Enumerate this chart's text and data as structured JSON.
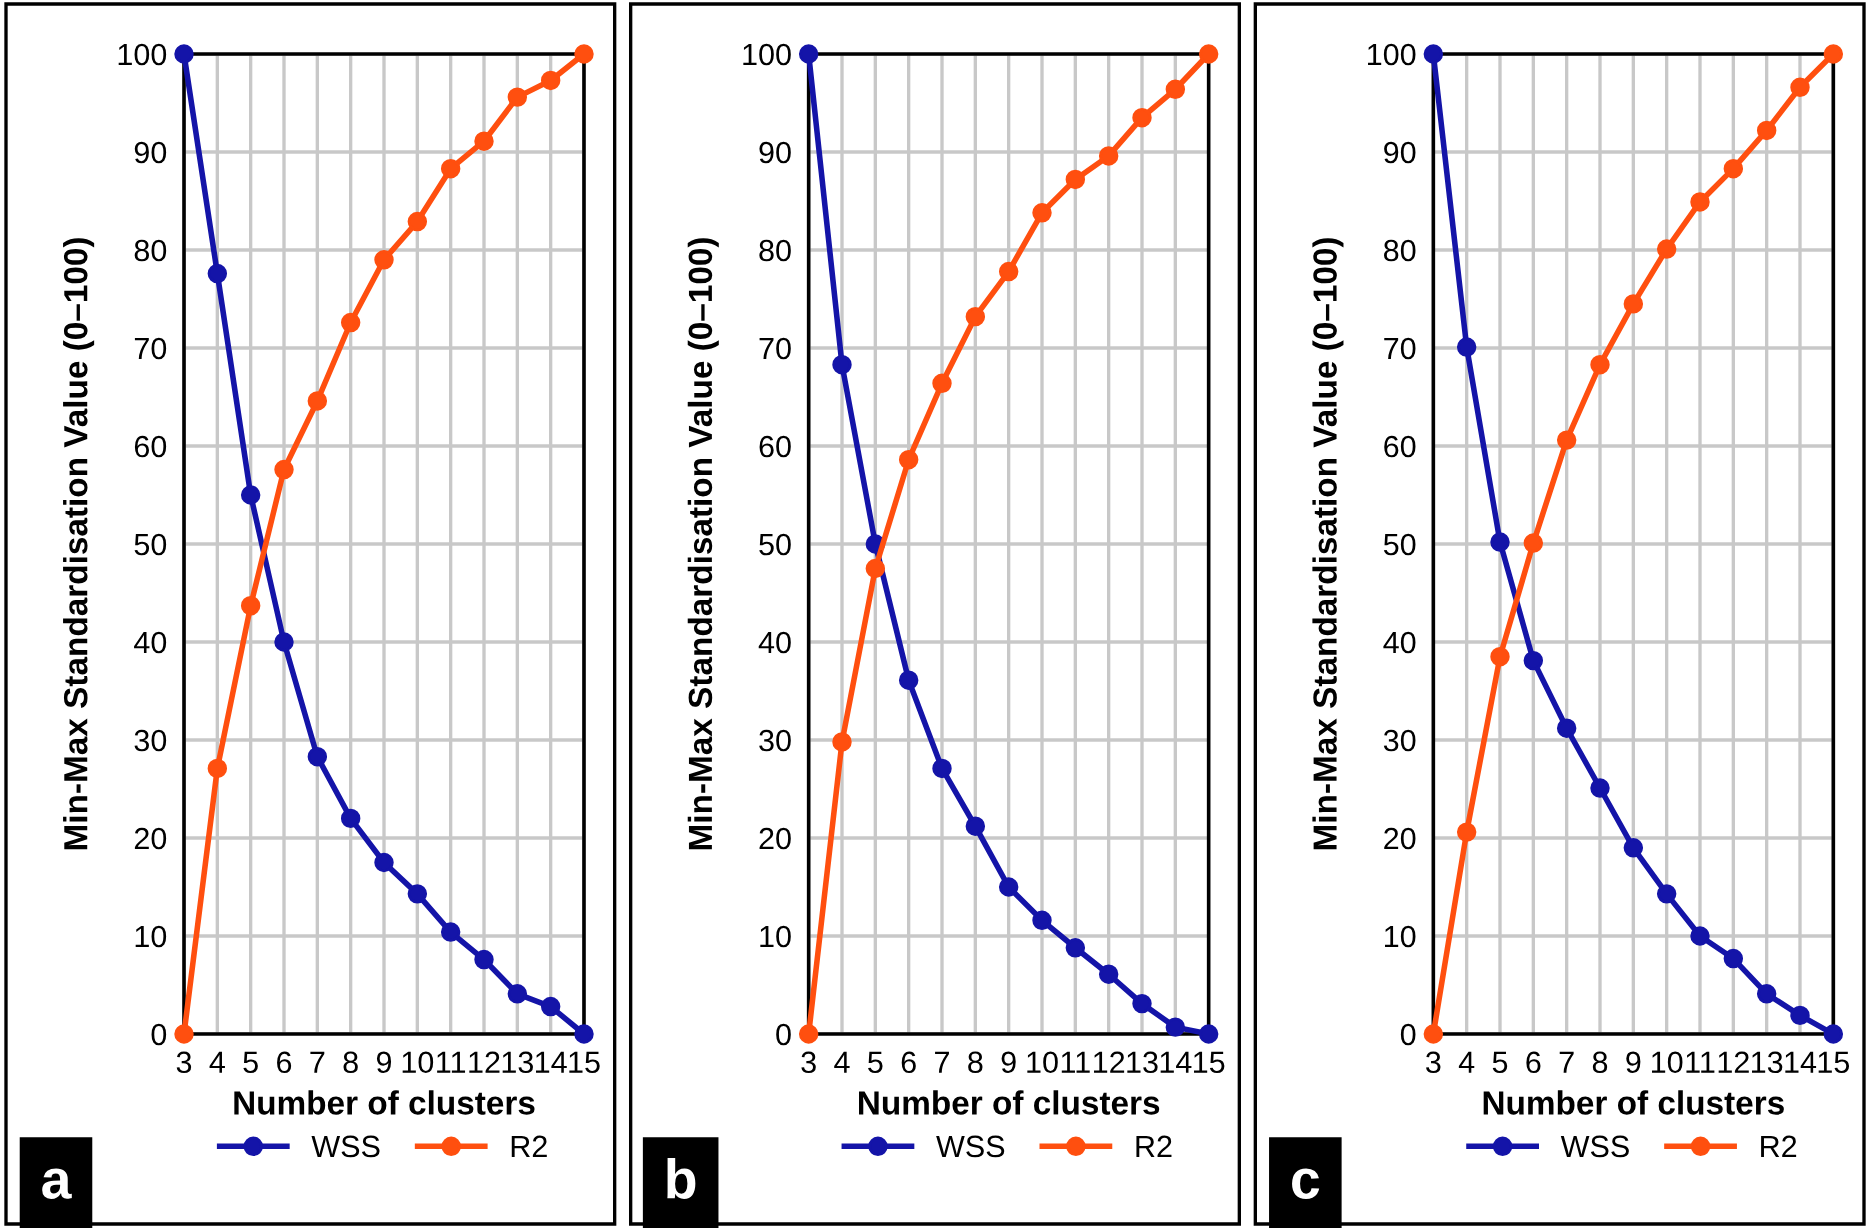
{
  "chart_data": [
    {
      "type": "line",
      "ylabel": "Min-Max Standardisation Value (0–100)",
      "xlabel": "Number of clusters",
      "categories": [
        "3",
        "4",
        "5",
        "6",
        "7",
        "8",
        "9",
        "10",
        "11",
        "12",
        "13",
        "14",
        "15"
      ],
      "ylim": [
        0,
        100
      ],
      "yticks": [
        0,
        10,
        20,
        30,
        40,
        50,
        60,
        70,
        80,
        90,
        100
      ],
      "grid": true,
      "legend": "bottom",
      "marker": "circle",
      "line_style": "solid",
      "annotations": [
        "a"
      ],
      "series": [
        {
          "name": "WSS",
          "color": "#1414a8",
          "values": [
            100,
            77.6,
            55,
            40,
            28.3,
            22,
            17.5,
            14.3,
            10.4,
            7.6,
            4.1,
            2.8,
            0
          ]
        },
        {
          "name": "R2",
          "color": "#ff4f0f",
          "values": [
            0,
            27.1,
            43.7,
            57.6,
            64.6,
            72.6,
            79,
            82.9,
            88.3,
            91.1,
            95.6,
            97.3,
            100
          ]
        }
      ]
    },
    {
      "type": "line",
      "ylabel": "Min-Max Standardisation Value (0–100)",
      "xlabel": "Number of clusters",
      "categories": [
        "3",
        "4",
        "5",
        "6",
        "7",
        "8",
        "9",
        "10",
        "11",
        "12",
        "13",
        "14",
        "15"
      ],
      "ylim": [
        0,
        100
      ],
      "yticks": [
        0,
        10,
        20,
        30,
        40,
        50,
        60,
        70,
        80,
        90,
        100
      ],
      "grid": true,
      "legend": "bottom",
      "marker": "circle",
      "line_style": "solid",
      "annotations": [
        "b"
      ],
      "series": [
        {
          "name": "WSS",
          "color": "#1414a8",
          "values": [
            100,
            68.3,
            50,
            36.1,
            27.1,
            21.2,
            15,
            11.6,
            8.8,
            6.1,
            3.1,
            0.7,
            0
          ]
        },
        {
          "name": "R2",
          "color": "#ff4f0f",
          "values": [
            0,
            29.8,
            47.5,
            58.6,
            66.4,
            73.2,
            77.8,
            83.8,
            87.2,
            89.6,
            93.5,
            96.4,
            100
          ]
        }
      ]
    },
    {
      "type": "line",
      "ylabel": "Min-Max Standardisation Value (0–100)",
      "xlabel": "Number of clusters",
      "categories": [
        "3",
        "4",
        "5",
        "6",
        "7",
        "8",
        "9",
        "10",
        "11",
        "12",
        "13",
        "14",
        "15"
      ],
      "ylim": [
        0,
        100
      ],
      "yticks": [
        0,
        10,
        20,
        30,
        40,
        50,
        60,
        70,
        80,
        90,
        100
      ],
      "grid": true,
      "legend": "bottom",
      "marker": "circle",
      "line_style": "solid",
      "annotations": [
        "c"
      ],
      "series": [
        {
          "name": "WSS",
          "color": "#1414a8",
          "values": [
            100,
            70.1,
            50.2,
            38.1,
            31.2,
            25.1,
            19,
            14.3,
            10,
            7.7,
            4.1,
            1.9,
            0
          ]
        },
        {
          "name": "R2",
          "color": "#ff4f0f",
          "values": [
            0,
            20.6,
            38.5,
            50.1,
            60.6,
            68.3,
            74.5,
            80.1,
            84.9,
            88.3,
            92.2,
            96.6,
            100
          ]
        }
      ]
    }
  ]
}
